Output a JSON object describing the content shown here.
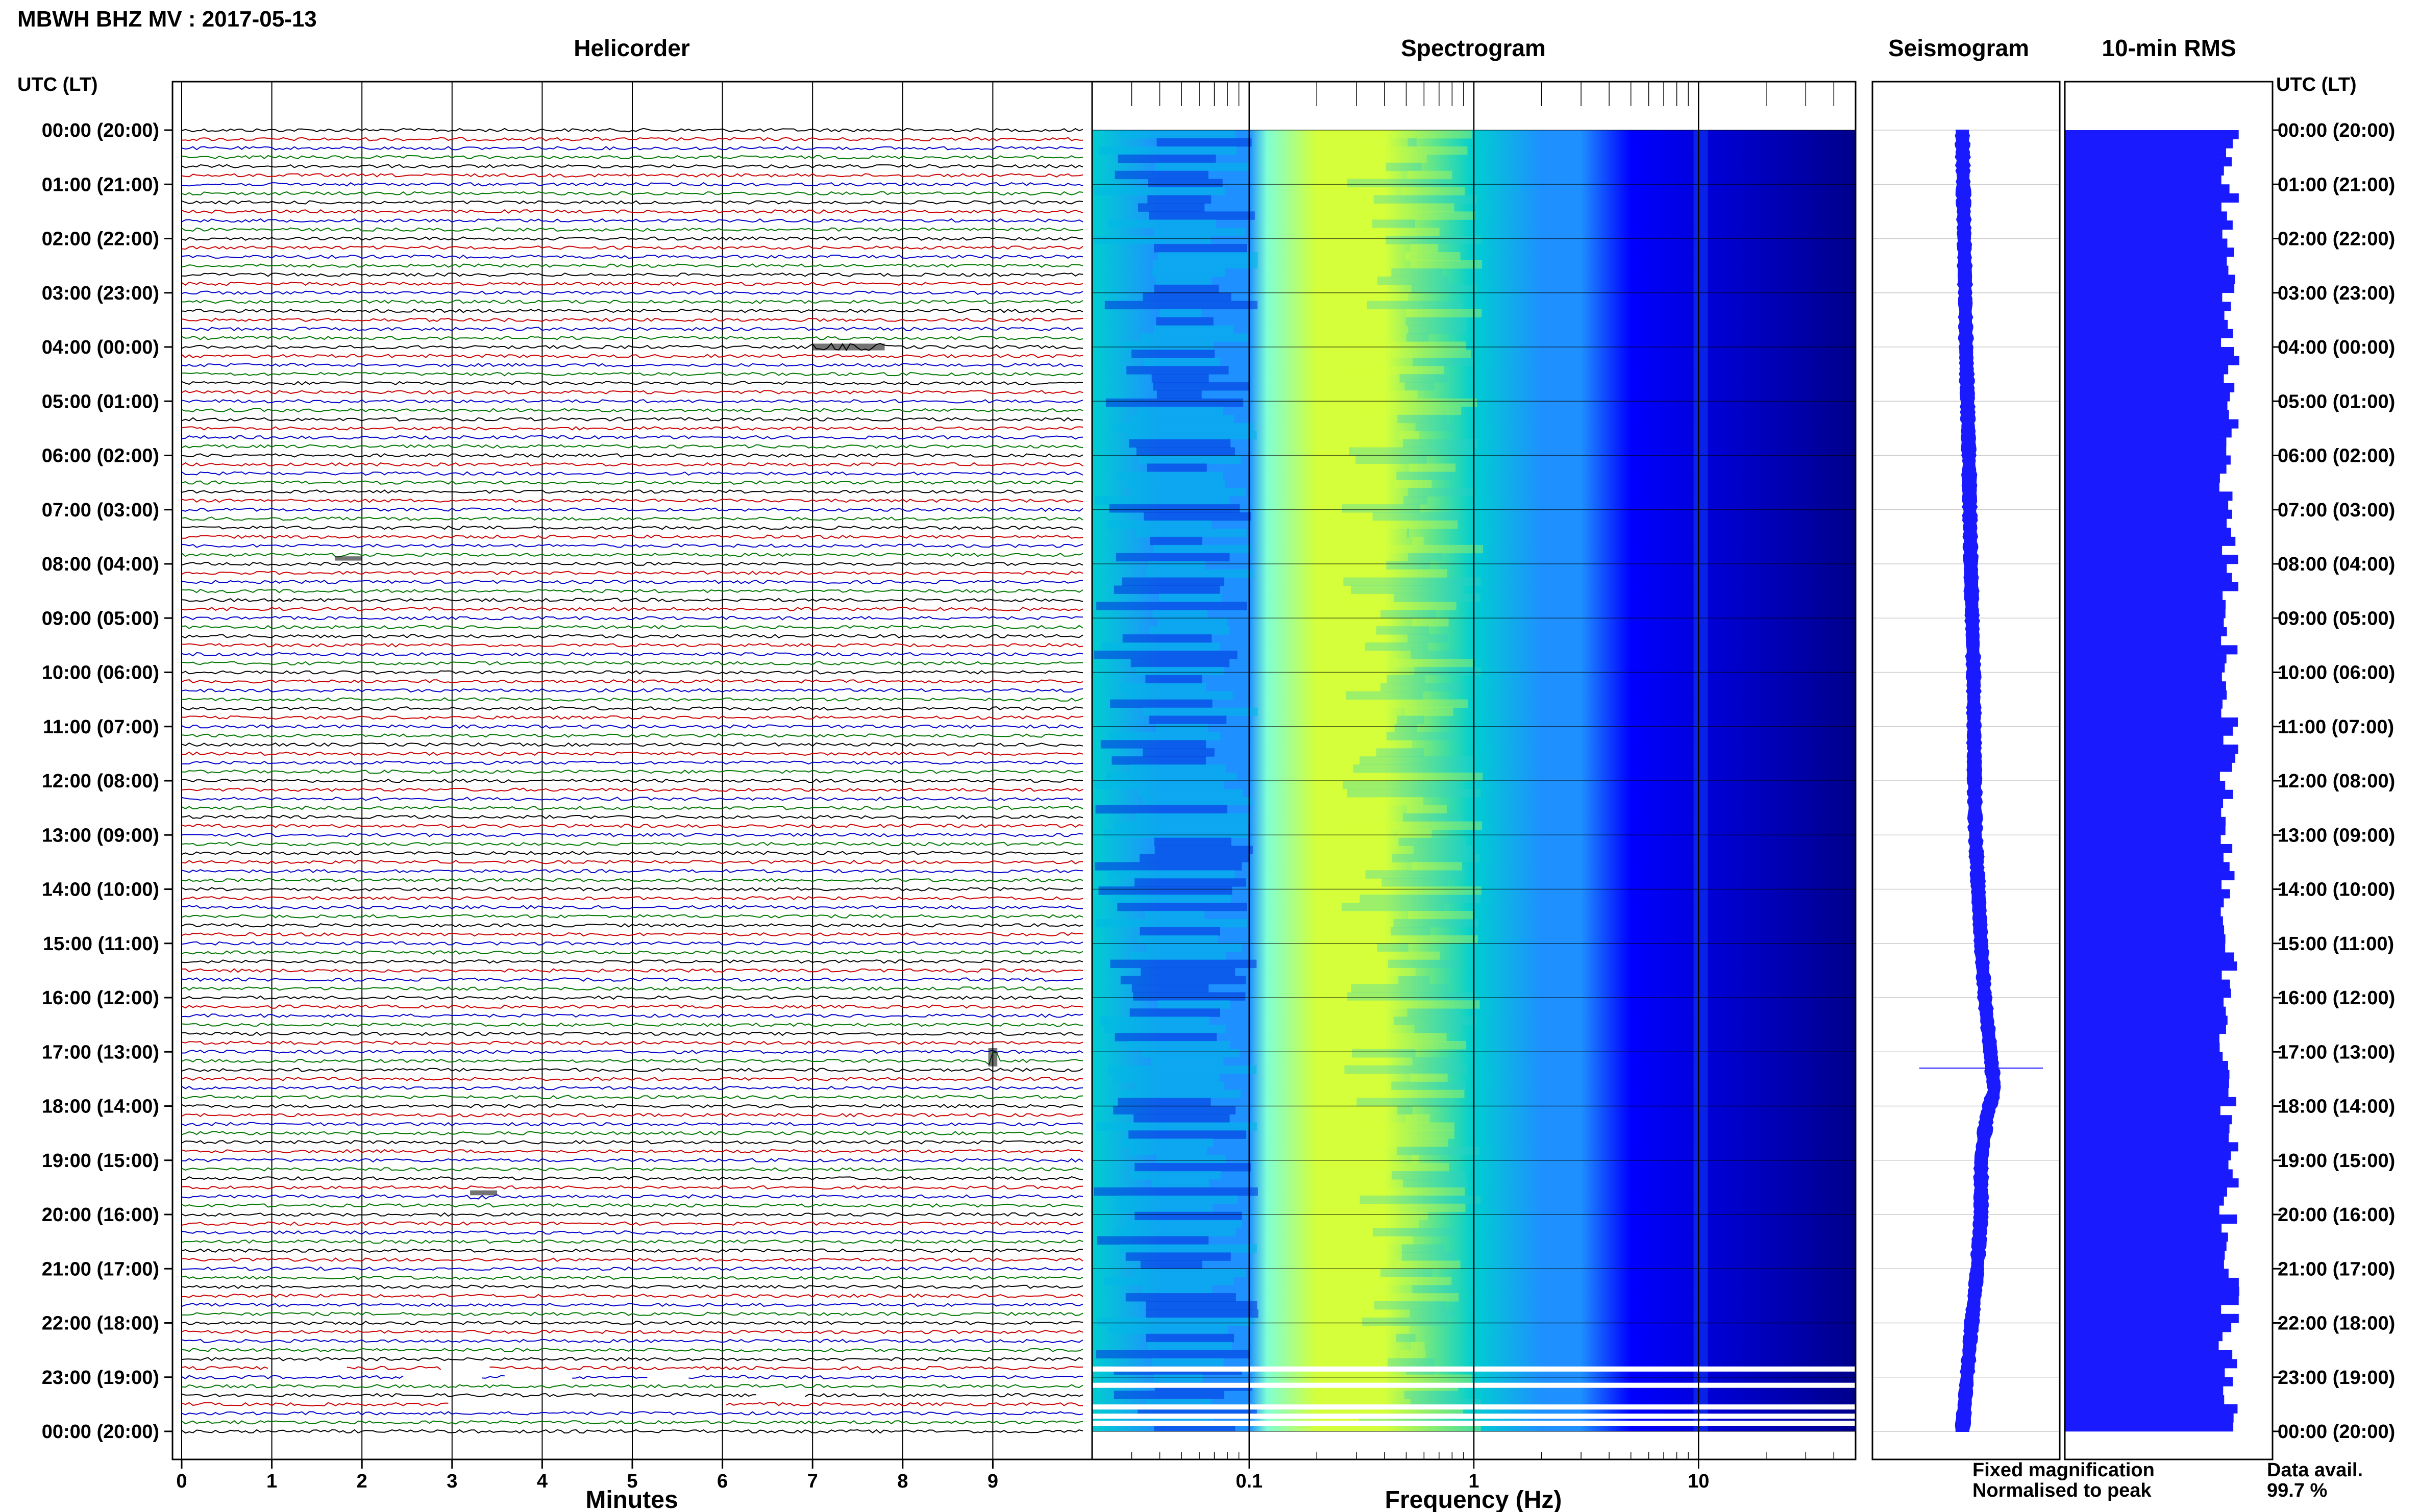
{
  "header": {
    "title": "MBWH BHZ MV : 2017-05-13",
    "time_axis_label": "UTC (LT)"
  },
  "panels": {
    "helicorder": "Helicorder",
    "spectrogram": "Spectrogram",
    "seismogram": "Seismogram",
    "rms": "10-min RMS"
  },
  "footer": {
    "minutes_label": "Minutes",
    "frequency_label": "Frequency (Hz)",
    "legend_fixed": "Fixed magnification",
    "legend_normalised": "Normalised to peak",
    "data_avail_label": "Data avail.",
    "data_avail_value": "99.7 %"
  },
  "colors": {
    "trace_cycle": [
      "#000000",
      "#cc0000",
      "#0000cc",
      "#007700"
    ],
    "legend_fixed": "#0000ff",
    "legend_normalised": "#ff0000",
    "seismogram": "#1a1aff",
    "rms_bars": "#1a1aff"
  },
  "chart_data": [
    {
      "type": "line",
      "name": "helicorder",
      "xlabel": "Minutes",
      "xlim": [
        0,
        10
      ],
      "x_ticks": [
        "0",
        "1",
        "2",
        "3",
        "4",
        "5",
        "6",
        "7",
        "8",
        "9"
      ],
      "time_labels": [
        "00:00 (20:00)",
        "01:00 (21:00)",
        "02:00 (22:00)",
        "03:00 (23:00)",
        "04:00 (00:00)",
        "05:00 (01:00)",
        "06:00 (02:00)",
        "07:00 (03:00)",
        "08:00 (04:00)",
        "09:00 (05:00)",
        "10:00 (06:00)",
        "11:00 (07:00)",
        "12:00 (08:00)",
        "13:00 (09:00)",
        "14:00 (10:00)",
        "15:00 (11:00)",
        "16:00 (12:00)",
        "17:00 (13:00)",
        "18:00 (14:00)",
        "19:00 (15:00)",
        "20:00 (16:00)",
        "21:00 (17:00)",
        "22:00 (18:00)",
        "23:00 (19:00)",
        "00:00 (20:00)"
      ],
      "rows_per_hour": 6,
      "events": [
        {
          "hour": 4.0,
          "minute_start": 7.0,
          "minute_end": 7.8,
          "amplitude": 2.2
        },
        {
          "hour": 7.9,
          "minute_start": 1.7,
          "minute_end": 2.0,
          "amplitude": 1.4
        },
        {
          "hour": 17.1,
          "minute_start": 8.95,
          "minute_end": 9.05,
          "amplitude": 6.0
        },
        {
          "hour": 19.6,
          "minute_start": 3.2,
          "minute_end": 3.5,
          "amplitude": 1.6
        }
      ],
      "gaps": [
        {
          "hour": 22.85,
          "minute_start": 1.0,
          "minute_end": 1.8
        },
        {
          "hour": 22.85,
          "minute_start": 2.9,
          "minute_end": 3.4
        },
        {
          "hour": 23.0,
          "minute_start": 2.5,
          "minute_end": 3.3
        },
        {
          "hour": 23.0,
          "minute_start": 3.6,
          "minute_end": 4.3
        },
        {
          "hour": 23.0,
          "minute_start": 5.2,
          "minute_end": 5.6
        },
        {
          "hour": 23.35,
          "minute_start": 6.4,
          "minute_end": 6.9
        },
        {
          "hour": 23.55,
          "minute_start": 3.0,
          "minute_end": 6.0
        }
      ]
    },
    {
      "type": "heatmap",
      "name": "spectrogram",
      "xlabel": "Frequency (Hz)",
      "x_scale": "log",
      "xlim": [
        0.02,
        50
      ],
      "x_ticks": [
        0.1,
        1,
        10
      ],
      "tick_labels": [
        "0.1",
        "1",
        "10"
      ],
      "ylim_hours": [
        0,
        24
      ],
      "gap_hours": [
        22.85,
        23.15,
        23.55,
        23.72,
        23.85
      ],
      "colormap": [
        "#00008b",
        "#0000ff",
        "#1e90ff",
        "#00ced1",
        "#7fffd4",
        "#d4ff3a"
      ]
    },
    {
      "type": "line",
      "name": "seismogram",
      "ylim_hours": [
        0,
        24
      ],
      "xlim": [
        -1,
        1
      ],
      "hours": [
        0,
        2,
        4,
        6,
        8,
        10,
        12,
        13,
        14,
        15,
        16,
        17,
        17.7,
        18.2,
        19,
        20,
        21,
        22,
        23,
        24
      ],
      "offsets": [
        0.0,
        0.02,
        0.04,
        0.07,
        0.09,
        0.12,
        0.13,
        0.14,
        0.17,
        0.2,
        0.24,
        0.3,
        0.34,
        0.26,
        0.2,
        0.2,
        0.16,
        0.1,
        0.05,
        0.0
      ],
      "spike": {
        "hour": 17.3,
        "min": -0.5,
        "max": 0.82
      }
    },
    {
      "type": "bar",
      "name": "rms",
      "ylim_hours": [
        0,
        24
      ],
      "xlim": [
        0,
        1
      ],
      "bins": 144,
      "base_level": 0.82
    }
  ]
}
